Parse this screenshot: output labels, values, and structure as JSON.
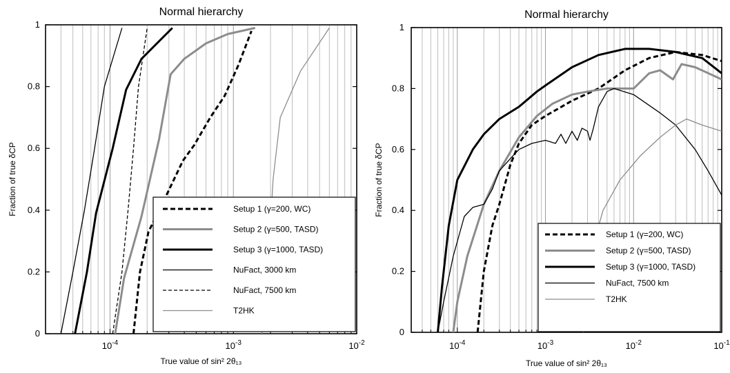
{
  "figure": {
    "chart_data": [
      {
        "type": "line",
        "title": "Normal hierarchy",
        "xlabel": "True value of sin² 2θ₁₃",
        "ylabel": "Fraction of true δCP",
        "xscale": "log",
        "xlim": [
          3e-05,
          0.01
        ],
        "ylim": [
          0,
          1
        ],
        "x_ticks": [
          {
            "value": 0.0001,
            "base": "10",
            "exp": "-4"
          },
          {
            "value": 0.001,
            "base": "10",
            "exp": "-3"
          },
          {
            "value": 0.01,
            "base": "10",
            "exp": "-2"
          }
        ],
        "y_ticks": [
          {
            "value": 0,
            "label": "0"
          },
          {
            "value": 0.2,
            "label": "0.2"
          },
          {
            "value": 0.4,
            "label": "0.4"
          },
          {
            "value": 0.6,
            "label": "0.6"
          },
          {
            "value": 0.8,
            "label": "0.8"
          },
          {
            "value": 1,
            "label": "1"
          }
        ],
        "grid": "vertical minor",
        "legend_position": "bottom-right",
        "series": [
          {
            "name": "Setup 1  (γ=200, WC)",
            "color": "#000000",
            "style": "dashed-thick",
            "points": [
              [
                0.000155,
                0.0
              ],
              [
                0.000175,
                0.2
              ],
              [
                0.000205,
                0.33
              ],
              [
                0.00028,
                0.44
              ],
              [
                0.00039,
                0.56
              ],
              [
                0.00048,
                0.61
              ],
              [
                0.00065,
                0.7
              ],
              [
                0.00085,
                0.77
              ],
              [
                0.0011,
                0.87
              ],
              [
                0.0014,
                0.98
              ]
            ]
          },
          {
            "name": "Setup 2  (γ=500, TASD)",
            "color": "#8c8c8c",
            "style": "solid-thick",
            "points": [
              [
                0.00011,
                0.0
              ],
              [
                0.00013,
                0.18
              ],
              [
                0.00018,
                0.38
              ],
              [
                0.00025,
                0.63
              ],
              [
                0.00031,
                0.84
              ],
              [
                0.0004,
                0.89
              ],
              [
                0.0006,
                0.94
              ],
              [
                0.0009,
                0.97
              ],
              [
                0.0015,
                0.99
              ]
            ]
          },
          {
            "name": "Setup 3  (γ=1000, TASD)",
            "color": "#000000",
            "style": "solid-thick",
            "points": [
              [
                5.2e-05,
                0.0
              ],
              [
                6.5e-05,
                0.2
              ],
              [
                7.7e-05,
                0.39
              ],
              [
                0.000105,
                0.6
              ],
              [
                0.000135,
                0.79
              ],
              [
                0.00018,
                0.89
              ],
              [
                0.00024,
                0.94
              ],
              [
                0.00032,
                0.99
              ]
            ]
          },
          {
            "name": "NuFact, 3000 km",
            "color": "#000000",
            "style": "solid-thin",
            "points": [
              [
                4e-05,
                0.0
              ],
              [
                5e-05,
                0.2
              ],
              [
                6.2e-05,
                0.4
              ],
              [
                7.5e-05,
                0.6
              ],
              [
                9e-05,
                0.8
              ],
              [
                0.000125,
                0.99
              ]
            ]
          },
          {
            "name": "NuFact, 7500 km",
            "color": "#000000",
            "style": "dashed-thin",
            "points": [
              [
                0.000105,
                0.0
              ],
              [
                0.000125,
                0.2
              ],
              [
                0.00014,
                0.4
              ],
              [
                0.000155,
                0.6
              ],
              [
                0.00017,
                0.8
              ],
              [
                0.0002,
                0.99
              ]
            ]
          },
          {
            "name": "T2HK",
            "color": "#8c8c8c",
            "style": "solid-thin",
            "points": [
              [
                0.0017,
                0.0
              ],
              [
                0.0019,
                0.2
              ],
              [
                0.0021,
                0.5
              ],
              [
                0.0024,
                0.7
              ],
              [
                0.0035,
                0.85
              ],
              [
                0.006,
                0.99
              ]
            ]
          }
        ]
      },
      {
        "type": "line",
        "title": "Normal hierarchy",
        "xlabel": "True value of sin² 2θ₁₃",
        "ylabel": "Fraction of  true δCP",
        "xscale": "log",
        "xlim": [
          3e-05,
          0.1
        ],
        "ylim": [
          0,
          1
        ],
        "x_ticks": [
          {
            "value": 0.0001,
            "base": "10",
            "exp": "-4"
          },
          {
            "value": 0.001,
            "base": "10",
            "exp": "-3"
          },
          {
            "value": 0.01,
            "base": "10",
            "exp": "-2"
          },
          {
            "value": 0.1,
            "base": "10",
            "exp": "-1"
          }
        ],
        "y_ticks": [
          {
            "value": 0,
            "label": "0"
          },
          {
            "value": 0.2,
            "label": "0.2"
          },
          {
            "value": 0.4,
            "label": "0.4"
          },
          {
            "value": 0.6,
            "label": "0.6"
          },
          {
            "value": 0.8,
            "label": "0.8"
          },
          {
            "value": 1,
            "label": "1"
          }
        ],
        "grid": "vertical minor",
        "legend_position": "bottom-right",
        "series": [
          {
            "name": "Setup 1   (γ=200, WC)",
            "color": "#000000",
            "style": "dashed-thick",
            "points": [
              [
                0.00017,
                0.0
              ],
              [
                0.0002,
                0.2
              ],
              [
                0.00025,
                0.35
              ],
              [
                0.0003,
                0.42
              ],
              [
                0.0004,
                0.55
              ],
              [
                0.0005,
                0.62
              ],
              [
                0.0007,
                0.68
              ],
              [
                0.001,
                0.71
              ],
              [
                0.002,
                0.76
              ],
              [
                0.004,
                0.8
              ],
              [
                0.008,
                0.86
              ],
              [
                0.015,
                0.9
              ],
              [
                0.03,
                0.92
              ],
              [
                0.06,
                0.91
              ],
              [
                0.1,
                0.89
              ]
            ]
          },
          {
            "name": "Setup 2   (γ=500, TASD)",
            "color": "#8c8c8c",
            "style": "solid-thick",
            "points": [
              [
                9e-05,
                0.0
              ],
              [
                0.0001,
                0.1
              ],
              [
                0.00013,
                0.25
              ],
              [
                0.0002,
                0.42
              ],
              [
                0.0003,
                0.53
              ],
              [
                0.0005,
                0.64
              ],
              [
                0.0008,
                0.71
              ],
              [
                0.0012,
                0.75
              ],
              [
                0.002,
                0.78
              ],
              [
                0.003,
                0.79
              ],
              [
                0.005,
                0.8
              ],
              [
                0.007,
                0.8
              ],
              [
                0.01,
                0.8
              ],
              [
                0.015,
                0.85
              ],
              [
                0.02,
                0.86
              ],
              [
                0.028,
                0.83
              ],
              [
                0.035,
                0.88
              ],
              [
                0.05,
                0.87
              ],
              [
                0.1,
                0.83
              ]
            ]
          },
          {
            "name": "Setup 3   (γ=1000, TASD)",
            "color": "#000000",
            "style": "solid-thick",
            "points": [
              [
                6e-05,
                0.0
              ],
              [
                6.7e-05,
                0.15
              ],
              [
                8e-05,
                0.35
              ],
              [
                0.0001,
                0.5
              ],
              [
                0.00015,
                0.6
              ],
              [
                0.0002,
                0.65
              ],
              [
                0.0003,
                0.7
              ],
              [
                0.0005,
                0.74
              ],
              [
                0.0008,
                0.79
              ],
              [
                0.001,
                0.81
              ],
              [
                0.002,
                0.87
              ],
              [
                0.004,
                0.91
              ],
              [
                0.008,
                0.93
              ],
              [
                0.015,
                0.93
              ],
              [
                0.03,
                0.92
              ],
              [
                0.06,
                0.9
              ],
              [
                0.1,
                0.85
              ]
            ]
          },
          {
            "name": "NuFact, 7500 km",
            "color": "#000000",
            "style": "solid-thin",
            "points": [
              [
                6e-05,
                0.0
              ],
              [
                7e-05,
                0.1
              ],
              [
                9e-05,
                0.25
              ],
              [
                0.00012,
                0.38
              ],
              [
                0.00015,
                0.41
              ],
              [
                0.0002,
                0.42
              ],
              [
                0.00025,
                0.47
              ],
              [
                0.0003,
                0.53
              ],
              [
                0.0004,
                0.57
              ],
              [
                0.0005,
                0.6
              ],
              [
                0.0007,
                0.62
              ],
              [
                0.001,
                0.63
              ],
              [
                0.0013,
                0.62
              ],
              [
                0.0015,
                0.65
              ],
              [
                0.0017,
                0.62
              ],
              [
                0.002,
                0.66
              ],
              [
                0.0023,
                0.63
              ],
              [
                0.0026,
                0.67
              ],
              [
                0.003,
                0.66
              ],
              [
                0.0032,
                0.63
              ],
              [
                0.0035,
                0.67
              ],
              [
                0.004,
                0.74
              ],
              [
                0.005,
                0.79
              ],
              [
                0.006,
                0.8
              ],
              [
                0.01,
                0.78
              ],
              [
                0.02,
                0.72
              ],
              [
                0.03,
                0.68
              ],
              [
                0.05,
                0.6
              ],
              [
                0.07,
                0.53
              ],
              [
                0.1,
                0.45
              ]
            ]
          },
          {
            "name": "T2HK",
            "color": "#8c8c8c",
            "style": "solid-thin",
            "points": [
              [
                0.0027,
                0.0
              ],
              [
                0.0028,
                0.1
              ],
              [
                0.0032,
                0.25
              ],
              [
                0.0045,
                0.4
              ],
              [
                0.007,
                0.5
              ],
              [
                0.012,
                0.58
              ],
              [
                0.02,
                0.64
              ],
              [
                0.03,
                0.68
              ],
              [
                0.04,
                0.7
              ],
              [
                0.06,
                0.68
              ],
              [
                0.1,
                0.66
              ]
            ]
          }
        ]
      }
    ]
  }
}
